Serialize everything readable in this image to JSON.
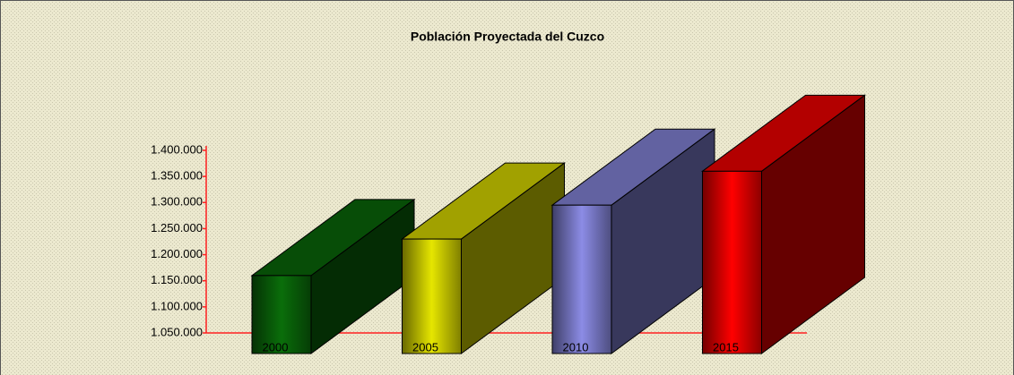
{
  "chart_data": {
    "type": "bar3d",
    "title": "Población Proyectada del Cuzco",
    "categories": [
      "2000",
      "2005",
      "2010",
      "2015"
    ],
    "values": [
      1160000,
      1230000,
      1295000,
      1360000
    ],
    "colors": [
      "#0a6e0a",
      "#e6e600",
      "#8c8ce6",
      "#ff0000"
    ],
    "ylim": [
      1050000,
      1400000
    ],
    "yticks": [
      {
        "value": 1050000,
        "label": "1.050.000"
      },
      {
        "value": 1100000,
        "label": "1.100.000"
      },
      {
        "value": 1150000,
        "label": "1.150.000"
      },
      {
        "value": 1200000,
        "label": "1.200.000"
      },
      {
        "value": 1250000,
        "label": "1.250.000"
      },
      {
        "value": 1300000,
        "label": "1.300.000"
      },
      {
        "value": 1350000,
        "label": "1.350.000"
      },
      {
        "value": 1400000,
        "label": "1.400.000"
      }
    ],
    "grid": false
  }
}
